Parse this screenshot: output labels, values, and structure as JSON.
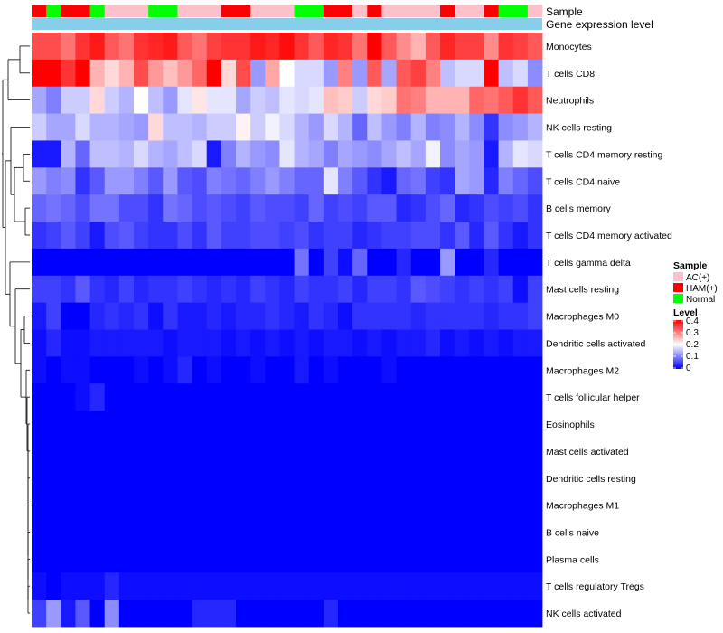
{
  "chart_data": {
    "type": "heatmap",
    "title": "",
    "annotation_rows": [
      "Sample",
      "Gene expression level"
    ],
    "column_samples": [
      "HAM(+)",
      "Normal",
      "HAM(+)",
      "HAM(+)",
      "Normal",
      "AC(+)",
      "AC(+)",
      "AC(+)",
      "Normal",
      "Normal",
      "AC(+)",
      "AC(+)",
      "AC(+)",
      "HAM(+)",
      "HAM(+)",
      "AC(+)",
      "AC(+)",
      "AC(+)",
      "Normal",
      "Normal",
      "HAM(+)",
      "HAM(+)",
      "AC(+)",
      "HAM(+)",
      "AC(+)",
      "AC(+)",
      "AC(+)",
      "AC(+)",
      "HAM(+)",
      "AC(+)",
      "AC(+)",
      "HAM(+)",
      "Normal",
      "Normal",
      "AC(+)"
    ],
    "rows": [
      "Monocytes",
      "T cells CD8",
      "Neutrophils",
      "NK cells resting",
      "T cells CD4 memory resting",
      "T cells CD4 naive",
      "B cells memory",
      "T cells CD4 memory activated",
      "T cells gamma delta",
      "Mast cells resting",
      "Macrophages M0",
      "Dendritic cells activated",
      "Macrophages M2",
      "T cells follicular helper",
      "Eosinophils",
      "Mast cells activated",
      "Dendritic cells resting",
      "Macrophages M1",
      "B cells naive",
      "Plasma cells",
      "T cells regulatory  Tregs",
      "NK cells activated"
    ],
    "color_scale": {
      "title": "Level",
      "min": 0,
      "max": 0.4,
      "ticks": [
        "0.4",
        "0.3",
        "0.2",
        "0.1",
        "0"
      ],
      "low": "#0000ff",
      "mid": "#ffffff",
      "high": "#ff0000",
      "midpoint": 0.2
    },
    "legend": {
      "title": "Sample",
      "entries": [
        {
          "label": "AC(+)",
          "color": "#ffc0cb"
        },
        {
          "label": "HAM(+)",
          "color": "#ff0000"
        },
        {
          "label": "Normal",
          "color": "#00ff00"
        }
      ],
      "position": "right"
    },
    "gene_expression_bar_color": "#87ceeb",
    "values": [
      [
        0.34,
        0.34,
        0.31,
        0.36,
        0.38,
        0.33,
        0.31,
        0.36,
        0.37,
        0.38,
        0.33,
        0.31,
        0.35,
        0.36,
        0.36,
        0.38,
        0.37,
        0.39,
        0.36,
        0.33,
        0.37,
        0.36,
        0.31,
        0.4,
        0.33,
        0.29,
        0.26,
        0.33,
        0.37,
        0.35,
        0.35,
        0.29,
        0.36,
        0.35,
        0.33
      ],
      [
        0.4,
        0.4,
        0.36,
        0.4,
        0.26,
        0.23,
        0.26,
        0.34,
        0.28,
        0.25,
        0.28,
        0.32,
        0.4,
        0.23,
        0.34,
        0.12,
        0.27,
        0.2,
        0.17,
        0.17,
        0.12,
        0.3,
        0.12,
        0.33,
        0.13,
        0.33,
        0.35,
        0.3,
        0.15,
        0.17,
        0.17,
        0.4,
        0.15,
        0.17,
        0.11
      ],
      [
        0.13,
        0.1,
        0.16,
        0.16,
        0.23,
        0.16,
        0.14,
        0.2,
        0.15,
        0.12,
        0.18,
        0.22,
        0.18,
        0.18,
        0.13,
        0.16,
        0.15,
        0.18,
        0.17,
        0.18,
        0.25,
        0.24,
        0.16,
        0.23,
        0.24,
        0.31,
        0.3,
        0.26,
        0.26,
        0.26,
        0.32,
        0.31,
        0.33,
        0.36,
        0.33
      ],
      [
        0.16,
        0.13,
        0.13,
        0.17,
        0.14,
        0.14,
        0.13,
        0.12,
        0.23,
        0.15,
        0.15,
        0.14,
        0.16,
        0.16,
        0.21,
        0.16,
        0.19,
        0.17,
        0.14,
        0.12,
        0.17,
        0.14,
        0.08,
        0.15,
        0.12,
        0.1,
        0.14,
        0.1,
        0.11,
        0.14,
        0.11,
        0.04,
        0.11,
        0.12,
        0.14
      ],
      [
        0.02,
        0.02,
        0.14,
        0.08,
        0.15,
        0.15,
        0.14,
        0.17,
        0.14,
        0.13,
        0.15,
        0.17,
        0.02,
        0.1,
        0.14,
        0.12,
        0.11,
        0.18,
        0.14,
        0.13,
        0.1,
        0.13,
        0.12,
        0.11,
        0.13,
        0.15,
        0.13,
        0.19,
        0.11,
        0.13,
        0.12,
        0.02,
        0.14,
        0.18,
        0.17
      ],
      [
        0.12,
        0.1,
        0.11,
        0.04,
        0.07,
        0.12,
        0.12,
        0.1,
        0.07,
        0.12,
        0.07,
        0.06,
        0.1,
        0.09,
        0.08,
        0.1,
        0.12,
        0.1,
        0.08,
        0.08,
        0.18,
        0.1,
        0.07,
        0.04,
        0.02,
        0.08,
        0.09,
        0.05,
        0.04,
        0.13,
        0.12,
        0.03,
        0.1,
        0.08,
        0.06
      ],
      [
        0.08,
        0.09,
        0.08,
        0.06,
        0.09,
        0.09,
        0.06,
        0.06,
        0.04,
        0.09,
        0.08,
        0.06,
        0.07,
        0.06,
        0.05,
        0.07,
        0.06,
        0.06,
        0.05,
        0.08,
        0.05,
        0.06,
        0.05,
        0.07,
        0.07,
        0.03,
        0.04,
        0.06,
        0.08,
        0.03,
        0.04,
        0.06,
        0.05,
        0.06,
        0.04
      ],
      [
        0.04,
        0.05,
        0.07,
        0.05,
        0.02,
        0.06,
        0.07,
        0.05,
        0.04,
        0.04,
        0.06,
        0.04,
        0.07,
        0.05,
        0.05,
        0.06,
        0.06,
        0.05,
        0.06,
        0.04,
        0.05,
        0.05,
        0.03,
        0.04,
        0.05,
        0.05,
        0.06,
        0.06,
        0.04,
        0.07,
        0.03,
        0.07,
        0.04,
        0.02,
        0.04
      ],
      [
        0.0,
        0.0,
        0.0,
        0.0,
        0.0,
        0.0,
        0.0,
        0.0,
        0.0,
        0.0,
        0.0,
        0.0,
        0.0,
        0.0,
        0.0,
        0.0,
        0.0,
        0.0,
        0.09,
        0.0,
        0.05,
        0.01,
        0.08,
        0.0,
        0.0,
        0.03,
        0.0,
        0.0,
        0.12,
        0.0,
        0.0,
        0.03,
        0.0,
        0.0,
        0.0
      ],
      [
        0.05,
        0.05,
        0.04,
        0.07,
        0.04,
        0.03,
        0.05,
        0.03,
        0.04,
        0.04,
        0.05,
        0.04,
        0.03,
        0.04,
        0.03,
        0.05,
        0.04,
        0.03,
        0.05,
        0.04,
        0.04,
        0.05,
        0.03,
        0.05,
        0.05,
        0.04,
        0.07,
        0.06,
        0.05,
        0.04,
        0.05,
        0.04,
        0.05,
        0.01,
        0.05
      ],
      [
        0.02,
        0.05,
        0.0,
        0.0,
        0.03,
        0.04,
        0.03,
        0.04,
        0.01,
        0.04,
        0.02,
        0.02,
        0.03,
        0.02,
        0.03,
        0.03,
        0.04,
        0.03,
        0.02,
        0.04,
        0.03,
        0.01,
        0.04,
        0.04,
        0.04,
        0.04,
        0.03,
        0.04,
        0.04,
        0.04,
        0.04,
        0.03,
        0.04,
        0.04,
        0.05
      ],
      [
        0.01,
        0.03,
        0.01,
        0.01,
        0.02,
        0.02,
        0.02,
        0.02,
        0.02,
        0.01,
        0.02,
        0.02,
        0.02,
        0.01,
        0.02,
        0.01,
        0.02,
        0.01,
        0.02,
        0.01,
        0.02,
        0.02,
        0.01,
        0.02,
        0.01,
        0.02,
        0.02,
        0.03,
        0.01,
        0.02,
        0.01,
        0.02,
        0.01,
        0.02,
        0.02
      ],
      [
        0.01,
        0.0,
        0.01,
        0.01,
        0.0,
        0.0,
        0.0,
        0.01,
        0.0,
        0.01,
        0.03,
        0.0,
        0.01,
        0.0,
        0.0,
        0.01,
        0.0,
        0.0,
        0.02,
        0.0,
        0.01,
        0.0,
        0.0,
        0.0,
        0.01,
        0.0,
        0.0,
        0.0,
        0.0,
        0.0,
        0.0,
        0.0,
        0.0,
        0.0,
        0.0
      ],
      [
        0.0,
        0.0,
        0.0,
        0.01,
        0.03,
        0.0,
        0.0,
        0.0,
        0.0,
        0.0,
        0.0,
        0.0,
        0.0,
        0.0,
        0.0,
        0.0,
        0.0,
        0.0,
        0.0,
        0.0,
        0.0,
        0.0,
        0.0,
        0.0,
        0.0,
        0.0,
        0.0,
        0.0,
        0.0,
        0.0,
        0.0,
        0.0,
        0.0,
        0.0,
        0.0
      ],
      [
        0.0,
        0.0,
        0.0,
        0.0,
        0.0,
        0.0,
        0.0,
        0.0,
        0.0,
        0.0,
        0.0,
        0.0,
        0.0,
        0.0,
        0.0,
        0.0,
        0.0,
        0.0,
        0.0,
        0.0,
        0.0,
        0.0,
        0.0,
        0.0,
        0.0,
        0.0,
        0.0,
        0.0,
        0.0,
        0.0,
        0.0,
        0.0,
        0.0,
        0.0,
        0.0
      ],
      [
        0.0,
        0.0,
        0.0,
        0.0,
        0.0,
        0.0,
        0.0,
        0.0,
        0.0,
        0.0,
        0.0,
        0.0,
        0.0,
        0.0,
        0.0,
        0.0,
        0.0,
        0.0,
        0.0,
        0.0,
        0.0,
        0.0,
        0.0,
        0.0,
        0.0,
        0.0,
        0.0,
        0.0,
        0.0,
        0.0,
        0.0,
        0.0,
        0.0,
        0.0,
        0.0
      ],
      [
        0.0,
        0.0,
        0.0,
        0.0,
        0.0,
        0.0,
        0.0,
        0.0,
        0.0,
        0.0,
        0.0,
        0.0,
        0.0,
        0.0,
        0.0,
        0.0,
        0.0,
        0.0,
        0.0,
        0.0,
        0.0,
        0.0,
        0.0,
        0.0,
        0.0,
        0.0,
        0.0,
        0.0,
        0.0,
        0.0,
        0.0,
        0.0,
        0.0,
        0.0,
        0.0
      ],
      [
        0.0,
        0.0,
        0.0,
        0.0,
        0.0,
        0.0,
        0.0,
        0.0,
        0.0,
        0.0,
        0.0,
        0.0,
        0.0,
        0.0,
        0.0,
        0.0,
        0.0,
        0.0,
        0.0,
        0.0,
        0.0,
        0.0,
        0.0,
        0.0,
        0.0,
        0.0,
        0.0,
        0.0,
        0.0,
        0.0,
        0.0,
        0.0,
        0.0,
        0.0,
        0.0
      ],
      [
        0.0,
        0.0,
        0.0,
        0.0,
        0.0,
        0.0,
        0.0,
        0.0,
        0.0,
        0.0,
        0.0,
        0.0,
        0.0,
        0.0,
        0.0,
        0.0,
        0.0,
        0.0,
        0.0,
        0.0,
        0.0,
        0.0,
        0.0,
        0.0,
        0.0,
        0.0,
        0.0,
        0.0,
        0.0,
        0.0,
        0.0,
        0.0,
        0.0,
        0.0,
        0.0
      ],
      [
        0.0,
        0.0,
        0.0,
        0.0,
        0.0,
        0.0,
        0.0,
        0.0,
        0.0,
        0.0,
        0.0,
        0.0,
        0.0,
        0.0,
        0.0,
        0.0,
        0.0,
        0.0,
        0.0,
        0.0,
        0.0,
        0.0,
        0.0,
        0.0,
        0.0,
        0.0,
        0.0,
        0.0,
        0.0,
        0.0,
        0.0,
        0.0,
        0.0,
        0.0,
        0.0
      ],
      [
        0.01,
        0.0,
        0.01,
        0.01,
        0.01,
        0.03,
        0.01,
        0.01,
        0.01,
        0.01,
        0.01,
        0.01,
        0.01,
        0.01,
        0.01,
        0.01,
        0.01,
        0.01,
        0.01,
        0.01,
        0.01,
        0.01,
        0.01,
        0.01,
        0.01,
        0.01,
        0.01,
        0.01,
        0.01,
        0.01,
        0.01,
        0.01,
        0.01,
        0.01,
        0.01
      ],
      [
        0.05,
        0.12,
        0.02,
        0.07,
        0.0,
        0.11,
        0.0,
        0.0,
        0.0,
        0.0,
        0.0,
        0.03,
        0.03,
        0.03,
        0.0,
        0.0,
        0.0,
        0.0,
        0.0,
        0.0,
        0.03,
        0.0,
        0.0,
        0.0,
        0.0,
        0.0,
        0.0,
        0.0,
        0.0,
        0.0,
        0.0,
        0.0,
        0.0,
        0.0,
        0.0
      ]
    ]
  }
}
